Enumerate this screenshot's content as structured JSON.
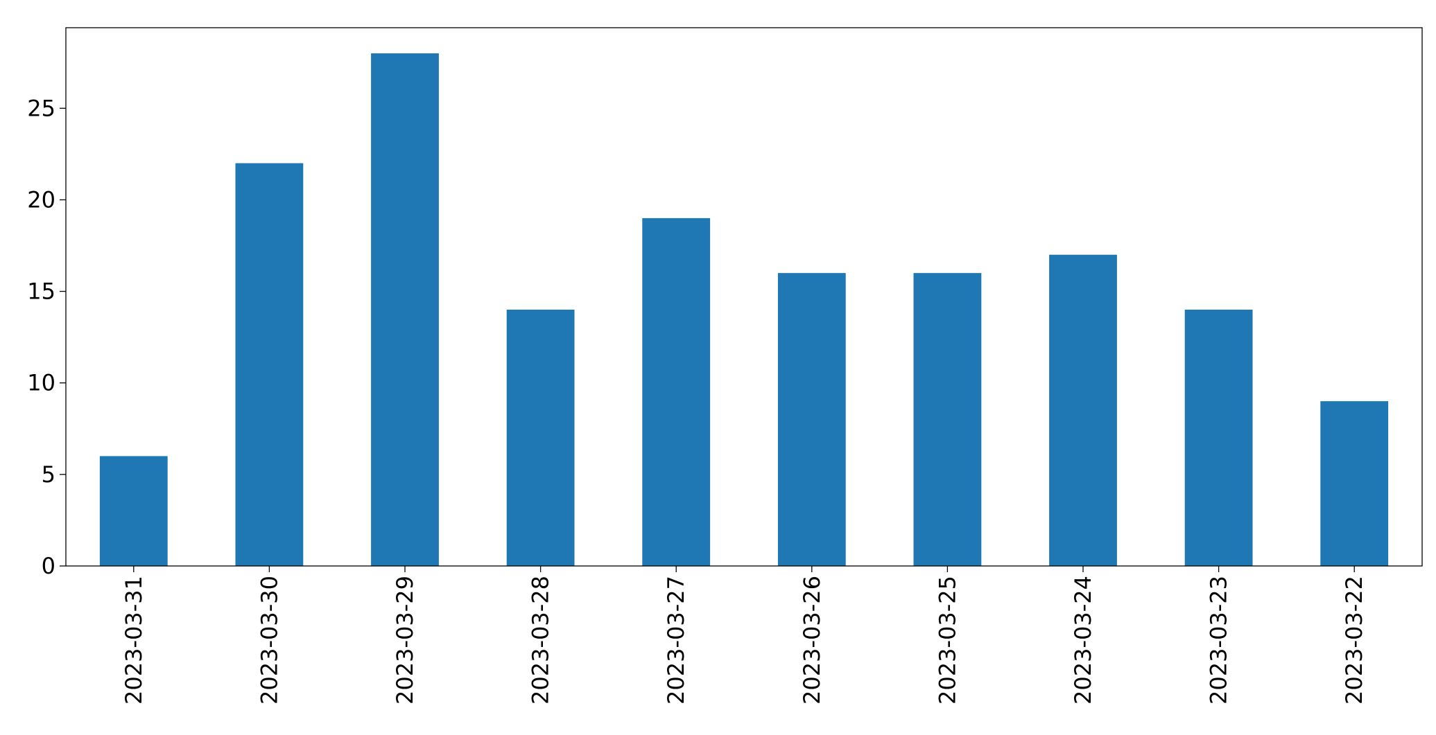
{
  "chart_data": {
    "type": "bar",
    "categories": [
      "2023-03-31",
      "2023-03-30",
      "2023-03-29",
      "2023-03-28",
      "2023-03-27",
      "2023-03-26",
      "2023-03-25",
      "2023-03-24",
      "2023-03-23",
      "2023-03-22"
    ],
    "values": [
      6,
      22,
      28,
      14,
      19,
      16,
      16,
      17,
      14,
      9
    ],
    "color": "#1f77b4",
    "ylim": [
      0,
      29.4
    ],
    "yticks": [
      0,
      5,
      10,
      15,
      20,
      25
    ],
    "grid": false
  }
}
